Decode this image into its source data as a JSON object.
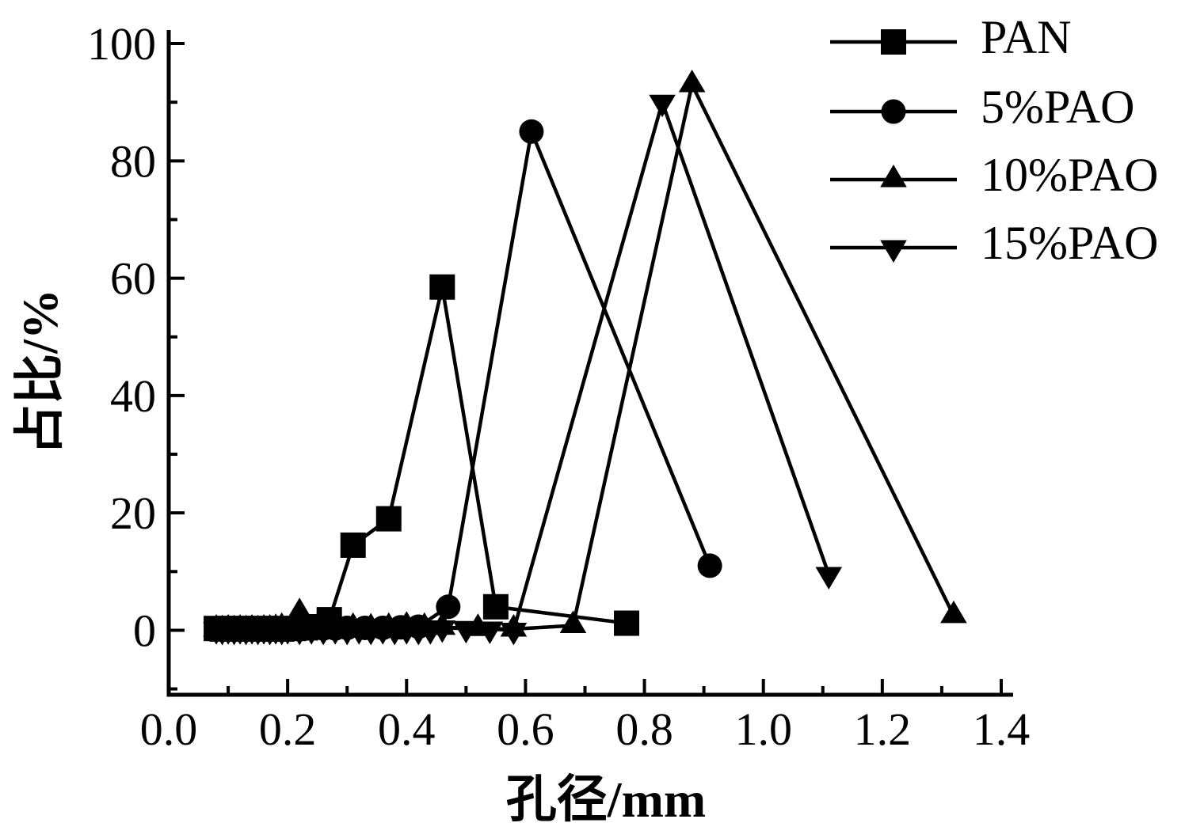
{
  "figure": {
    "background": "#ffffff",
    "ink_color": "#000000"
  },
  "chart_data": {
    "type": "line",
    "title": "",
    "xlabel": "孔径/mm",
    "ylabel": "占比/%",
    "xlim": [
      0,
      1.42
    ],
    "ylim": [
      -11,
      102.3
    ],
    "grid": false,
    "legend_position": "upper-right",
    "x_major_ticks": [
      0.0,
      0.2,
      0.4,
      0.6,
      0.8,
      1.0,
      1.2,
      1.4
    ],
    "x_major_tick_labels": [
      "0.0",
      "0.2",
      "0.4",
      "0.6",
      "0.8",
      "1.0",
      "1.2",
      "1.4"
    ],
    "x_minor_ticks": [
      0.1,
      0.3,
      0.5,
      0.7,
      0.9,
      1.1,
      1.3
    ],
    "y_major_ticks": [
      0,
      20,
      40,
      60,
      80,
      100
    ],
    "y_major_tick_labels": [
      "0",
      "20",
      "40",
      "60",
      "80",
      "100"
    ],
    "y_minor_ticks": [
      -10,
      10,
      30,
      50,
      70,
      90
    ],
    "series": [
      {
        "name": "PAN",
        "marker": "square",
        "color": "#000000",
        "points": [
          [
            0.08,
            0.3
          ],
          [
            0.09,
            0.2
          ],
          [
            0.1,
            0.3
          ],
          [
            0.11,
            0.2
          ],
          [
            0.12,
            0.3
          ],
          [
            0.13,
            0.2
          ],
          [
            0.14,
            0.3
          ],
          [
            0.15,
            0.2
          ],
          [
            0.16,
            0.3
          ],
          [
            0.17,
            0.2
          ],
          [
            0.18,
            0.3
          ],
          [
            0.19,
            0.2
          ],
          [
            0.21,
            0.3
          ],
          [
            0.23,
            0.4
          ],
          [
            0.25,
            0.6
          ],
          [
            0.27,
            1.8
          ],
          [
            0.31,
            14.5
          ],
          [
            0.37,
            19.0
          ],
          [
            0.46,
            58.5
          ],
          [
            0.55,
            4.0
          ],
          [
            0.77,
            1.2
          ]
        ]
      },
      {
        "name": "5%PAO",
        "marker": "circle",
        "color": "#000000",
        "points": [
          [
            0.08,
            0.2
          ],
          [
            0.09,
            0.1
          ],
          [
            0.1,
            0.2
          ],
          [
            0.11,
            0.1
          ],
          [
            0.12,
            0.2
          ],
          [
            0.13,
            0.1
          ],
          [
            0.14,
            0.2
          ],
          [
            0.15,
            0.1
          ],
          [
            0.16,
            0.2
          ],
          [
            0.17,
            0.1
          ],
          [
            0.18,
            0.2
          ],
          [
            0.19,
            0.1
          ],
          [
            0.2,
            0.2
          ],
          [
            0.22,
            0.2
          ],
          [
            0.24,
            0.3
          ],
          [
            0.26,
            0.3
          ],
          [
            0.28,
            0.3
          ],
          [
            0.3,
            0.4
          ],
          [
            0.33,
            0.4
          ],
          [
            0.36,
            0.4
          ],
          [
            0.39,
            0.5
          ],
          [
            0.42,
            0.6
          ],
          [
            0.47,
            4.0
          ],
          [
            0.61,
            85.0
          ],
          [
            0.91,
            11.0
          ]
        ]
      },
      {
        "name": "10%PAO",
        "marker": "triangle-up",
        "color": "#000000",
        "points": [
          [
            0.08,
            0.2
          ],
          [
            0.09,
            0.1
          ],
          [
            0.1,
            0.2
          ],
          [
            0.11,
            0.1
          ],
          [
            0.12,
            0.2
          ],
          [
            0.13,
            0.1
          ],
          [
            0.14,
            0.2
          ],
          [
            0.15,
            0.1
          ],
          [
            0.16,
            0.2
          ],
          [
            0.17,
            0.2
          ],
          [
            0.18,
            0.3
          ],
          [
            0.19,
            0.5
          ],
          [
            0.22,
            3.0
          ],
          [
            0.25,
            0.5
          ],
          [
            0.28,
            0.4
          ],
          [
            0.31,
            0.5
          ],
          [
            0.34,
            0.4
          ],
          [
            0.37,
            0.5
          ],
          [
            0.4,
            0.7
          ],
          [
            0.43,
            0.5
          ],
          [
            0.46,
            0.5
          ],
          [
            0.52,
            0.3
          ],
          [
            0.58,
            0.2
          ],
          [
            0.68,
            0.8
          ],
          [
            0.88,
            93.0
          ],
          [
            1.32,
            2.5
          ]
        ]
      },
      {
        "name": "15%PAO",
        "marker": "triangle-down",
        "color": "#000000",
        "points": [
          [
            0.08,
            0.1
          ],
          [
            0.09,
            0.0
          ],
          [
            0.1,
            0.1
          ],
          [
            0.11,
            0.0
          ],
          [
            0.12,
            0.1
          ],
          [
            0.13,
            0.0
          ],
          [
            0.14,
            0.1
          ],
          [
            0.15,
            0.0
          ],
          [
            0.16,
            0.1
          ],
          [
            0.17,
            0.0
          ],
          [
            0.18,
            0.1
          ],
          [
            0.19,
            0.0
          ],
          [
            0.2,
            0.1
          ],
          [
            0.22,
            0.0
          ],
          [
            0.24,
            0.1
          ],
          [
            0.26,
            0.0
          ],
          [
            0.28,
            0.1
          ],
          [
            0.3,
            0.0
          ],
          [
            0.32,
            0.1
          ],
          [
            0.34,
            0.0
          ],
          [
            0.36,
            0.1
          ],
          [
            0.38,
            0.0
          ],
          [
            0.4,
            0.1
          ],
          [
            0.42,
            0.0
          ],
          [
            0.44,
            0.1
          ],
          [
            0.46,
            0.4
          ],
          [
            0.5,
            0.3
          ],
          [
            0.54,
            0.2
          ],
          [
            0.58,
            0.0
          ],
          [
            0.83,
            90.0
          ],
          [
            1.11,
            9.5
          ]
        ]
      }
    ],
    "legend_entries": [
      "PAN",
      "5%PAO",
      "10%PAO",
      "15%PAO"
    ]
  }
}
